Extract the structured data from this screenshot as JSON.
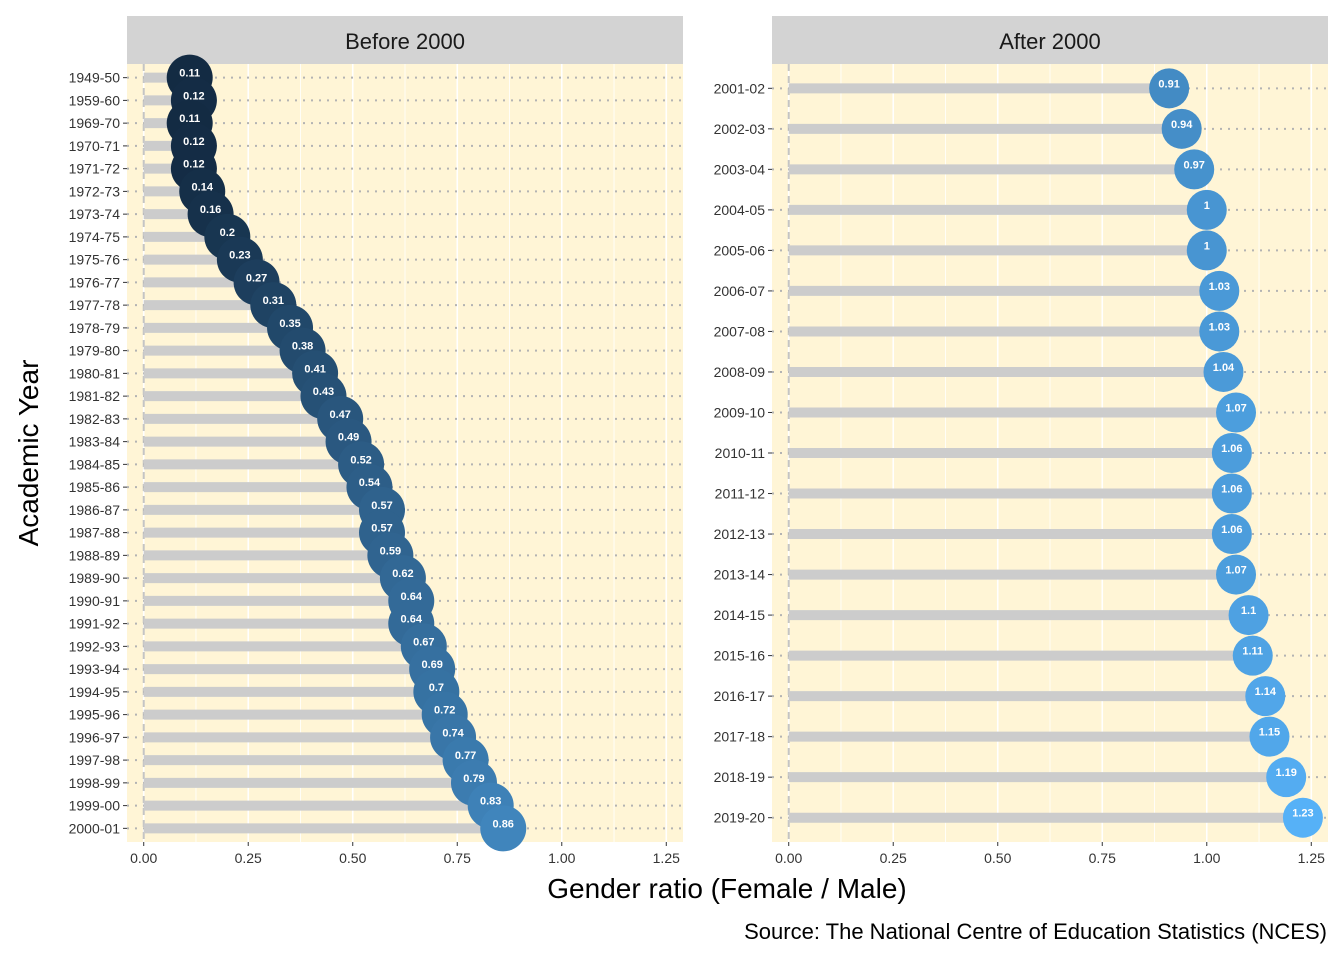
{
  "xlabel": "Gender ratio (Female / Male)",
  "ylabel": "Academic Year",
  "caption": "Source: The National Centre of Education Statistics (NCES)",
  "colors": {
    "panel_bg": "#fff5d6",
    "strip_bg": "#d3d3d3",
    "segment": "#cccccc",
    "point_low": "#132b43",
    "point_high": "#56b1f7",
    "dotted_line": "#b3b3b3"
  },
  "chart_data": [
    {
      "type": "lollipop",
      "title": "Before 2000",
      "x_ticks": [
        "0.00",
        "0.25",
        "0.50",
        "0.75",
        "1.00",
        "1.25"
      ],
      "xlim": [
        -0.04,
        1.29
      ],
      "categories": [
        "1949-50",
        "1959-60",
        "1969-70",
        "1970-71",
        "1971-72",
        "1972-73",
        "1973-74",
        "1974-75",
        "1975-76",
        "1976-77",
        "1977-78",
        "1978-79",
        "1979-80",
        "1980-81",
        "1981-82",
        "1982-83",
        "1983-84",
        "1984-85",
        "1985-86",
        "1986-87",
        "1987-88",
        "1988-89",
        "1989-90",
        "1990-91",
        "1991-92",
        "1992-93",
        "1993-94",
        "1994-95",
        "1995-96",
        "1996-97",
        "1997-98",
        "1998-99",
        "1999-00",
        "2000-01"
      ],
      "values": [
        0.11,
        0.12,
        0.11,
        0.12,
        0.12,
        0.14,
        0.16,
        0.2,
        0.23,
        0.27,
        0.31,
        0.35,
        0.38,
        0.41,
        0.43,
        0.47,
        0.49,
        0.52,
        0.54,
        0.57,
        0.57,
        0.59,
        0.62,
        0.64,
        0.64,
        0.67,
        0.69,
        0.7,
        0.72,
        0.74,
        0.77,
        0.79,
        0.83,
        0.86
      ],
      "labels": [
        "0.11",
        "0.12",
        "0.11",
        "0.12",
        "0.12",
        "0.14",
        "0.16",
        "0.2",
        "0.23",
        "0.27",
        "0.31",
        "0.35",
        "0.38",
        "0.41",
        "0.43",
        "0.47",
        "0.49",
        "0.52",
        "0.54",
        "0.57",
        "0.57",
        "0.59",
        "0.62",
        "0.64",
        "0.64",
        "0.67",
        "0.69",
        "0.7",
        "0.72",
        "0.74",
        "0.77",
        "0.79",
        "0.83",
        "0.86"
      ]
    },
    {
      "type": "lollipop",
      "title": "After 2000",
      "x_ticks": [
        "0.00",
        "0.25",
        "0.50",
        "0.75",
        "1.00",
        "1.25"
      ],
      "xlim": [
        -0.04,
        1.29
      ],
      "categories": [
        "2001-02",
        "2002-03",
        "2003-04",
        "2004-05",
        "2005-06",
        "2006-07",
        "2007-08",
        "2008-09",
        "2009-10",
        "2010-11",
        "2011-12",
        "2012-13",
        "2013-14",
        "2014-15",
        "2015-16",
        "2016-17",
        "2017-18",
        "2018-19",
        "2019-20"
      ],
      "values": [
        0.91,
        0.94,
        0.97,
        1,
        1,
        1.03,
        1.03,
        1.04,
        1.07,
        1.06,
        1.06,
        1.06,
        1.07,
        1.1,
        1.11,
        1.14,
        1.15,
        1.19,
        1.23
      ],
      "labels": [
        "0.91",
        "0.94",
        "0.97",
        "1",
        "1",
        "1.03",
        "1.03",
        "1.04",
        "1.07",
        "1.06",
        "1.06",
        "1.06",
        "1.07",
        "1.1",
        "1.11",
        "1.14",
        "1.15",
        "1.19",
        "1.23"
      ]
    }
  ]
}
